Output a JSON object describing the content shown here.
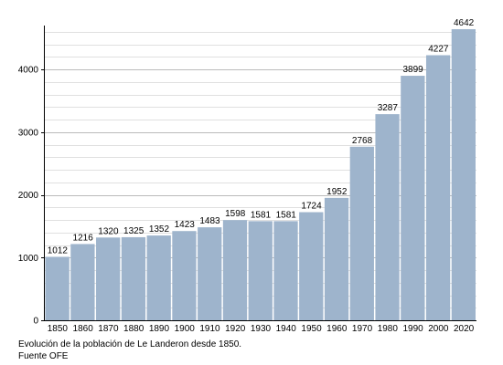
{
  "chart_data": {
    "type": "bar",
    "categories": [
      "1850",
      "1860",
      "1870",
      "1880",
      "1890",
      "1900",
      "1910",
      "1920",
      "1930",
      "1940",
      "1950",
      "1960",
      "1970",
      "1980",
      "1990",
      "2000",
      "2020"
    ],
    "values": [
      1012,
      1216,
      1320,
      1325,
      1352,
      1423,
      1483,
      1598,
      1581,
      1581,
      1724,
      1952,
      2768,
      3287,
      3899,
      4227,
      4642
    ],
    "ylim": [
      0,
      4700
    ],
    "yticks": [
      0,
      1000,
      2000,
      3000,
      4000
    ],
    "minor_step": 200,
    "grid": true,
    "bar_color": "#9eb4cc",
    "major_grid_color": "#bbbbbb",
    "minor_grid_color": "#e0e0e0"
  },
  "caption": {
    "line1": "Evolución de la población de Le Landeron desde 1850.",
    "line2": "Fuente OFE"
  }
}
